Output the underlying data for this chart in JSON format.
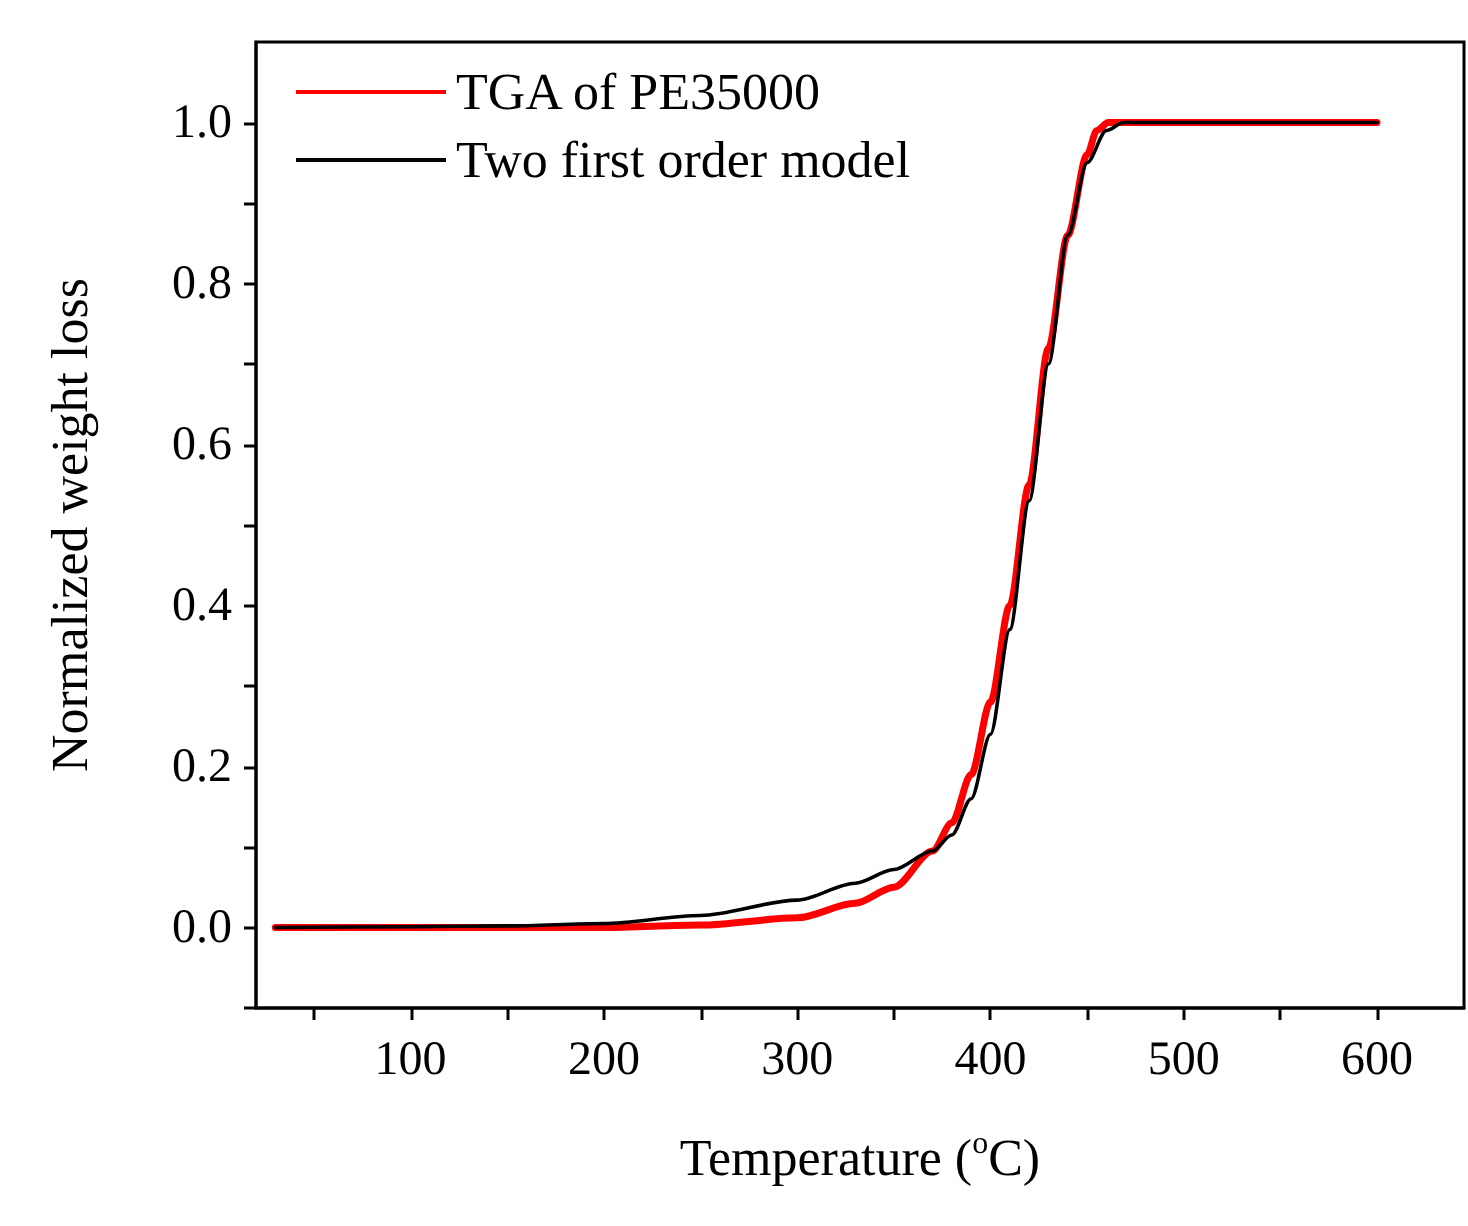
{
  "chart_data": {
    "type": "line",
    "xlabel": "Temperature ($^{o}$C)",
    "ylabel": "Normalized weight loss",
    "xlim": [
      20,
      645
    ],
    "ylim": [
      -0.1,
      1.1
    ],
    "xticks": [
      {
        "value": 50,
        "label": null
      },
      100,
      {
        "value": 150,
        "label": null
      },
      200,
      {
        "value": 250,
        "label": null
      },
      300,
      {
        "value": 350,
        "label": null
      },
      400,
      {
        "value": 450,
        "label": null
      },
      500,
      {
        "value": 550,
        "label": null
      },
      600
    ],
    "yticks": [
      {
        "value": -0.1,
        "label": null
      },
      {
        "value": 0,
        "label": "0.0"
      },
      {
        "value": 0.1,
        "label": null
      },
      {
        "value": 0.2,
        "label": "0.2"
      },
      {
        "value": 0.3,
        "label": null
      },
      {
        "value": 0.4,
        "label": "0.4"
      },
      {
        "value": 0.5,
        "label": null
      },
      {
        "value": 0.6,
        "label": "0.6"
      },
      {
        "value": 0.7,
        "label": null
      },
      {
        "value": 0.8,
        "label": "0.8"
      },
      {
        "value": 0.9,
        "label": null
      },
      {
        "value": 1,
        "label": "1.0"
      }
    ],
    "legend": "top left",
    "grid": false,
    "marker": "none",
    "line_style": "solid",
    "series": [
      {
        "name": "TGA of PE35000",
        "color": "#ff0000",
        "x": [
          30,
          100,
          150,
          200,
          250,
          300,
          330,
          350,
          370,
          380,
          390,
          400,
          410,
          420,
          430,
          440,
          450,
          455,
          461,
          480,
          550,
          600
        ],
        "values": [
          0,
          0,
          0,
          0,
          0.003,
          0.012,
          0.03,
          0.05,
          0.095,
          0.13,
          0.19,
          0.28,
          0.4,
          0.55,
          0.72,
          0.86,
          0.96,
          0.99,
          1,
          1,
          1,
          1
        ]
      },
      {
        "name": "Two first order model",
        "color": "#000000",
        "x": [
          30,
          100,
          150,
          200,
          250,
          300,
          330,
          350,
          370,
          380,
          390,
          400,
          410,
          420,
          430,
          440,
          450,
          460,
          469,
          500,
          550,
          600
        ],
        "values": [
          0,
          0.001,
          0.002,
          0.005,
          0.015,
          0.034,
          0.055,
          0.072,
          0.095,
          0.115,
          0.16,
          0.24,
          0.37,
          0.53,
          0.7,
          0.86,
          0.95,
          0.99,
          1,
          1,
          1,
          1
        ]
      }
    ]
  }
}
